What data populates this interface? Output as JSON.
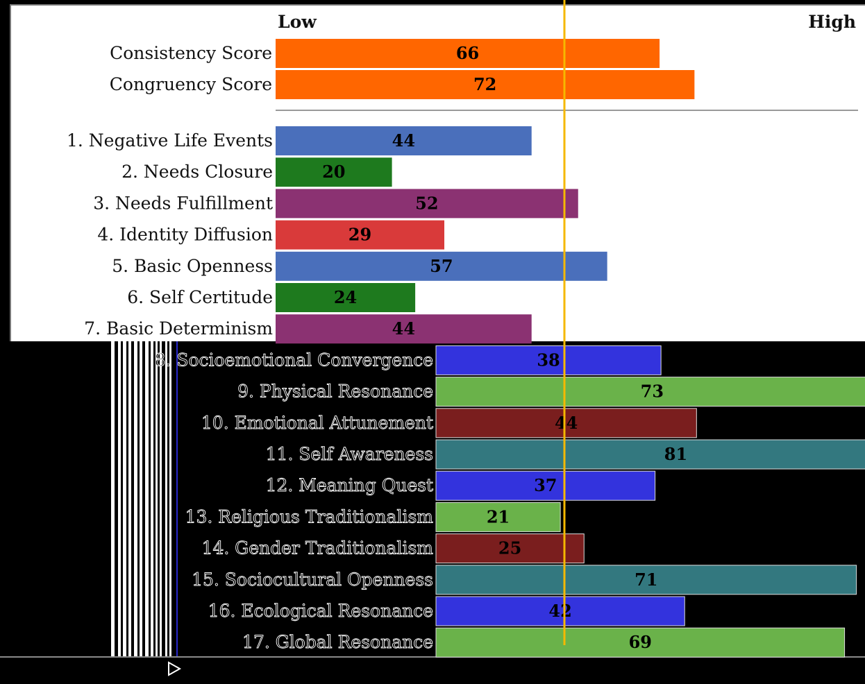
{
  "chart_data": {
    "type": "bar",
    "orientation": "horizontal",
    "scale_low_label": "Low",
    "scale_high_label": "High",
    "xlim": [
      0,
      100
    ],
    "summary": {
      "categories": [
        "Consistency Score",
        "Congruency Score"
      ],
      "values": [
        66,
        72
      ],
      "color": "#ff6600"
    },
    "scales": {
      "categories": [
        "1. Negative Life Events",
        "2. Needs Closure",
        "3. Needs Fulfillment",
        "4. Identity Diffusion",
        "5. Basic Openness",
        "6. Self Certitude",
        "7. Basic Determinism",
        "8. Socioemotional Convergence",
        "9. Physical Resonance",
        "10. Emotional Attunement",
        "11. Self Awareness",
        "12. Meaning Quest",
        "13. Religious Traditionalism",
        "14. Gender Traditionalism",
        "15. Sociocultural Openness",
        "16. Ecological Resonance",
        "17. Global Resonance"
      ],
      "values": [
        44,
        20,
        52,
        29,
        57,
        24,
        44,
        38,
        73,
        44,
        81,
        37,
        21,
        25,
        71,
        42,
        69
      ],
      "colors_normal": [
        "#4a6fbb",
        "#1e7a1e",
        "#8b3272",
        "#d93a3a"
      ],
      "colors_inverted": [
        "#3333dd",
        "#6ab24a",
        "#7a1e1e",
        "#33787f"
      ]
    },
    "marker_color": "#f5b800",
    "grid": false,
    "legend": "none"
  },
  "icons": {
    "play": "play-icon"
  }
}
